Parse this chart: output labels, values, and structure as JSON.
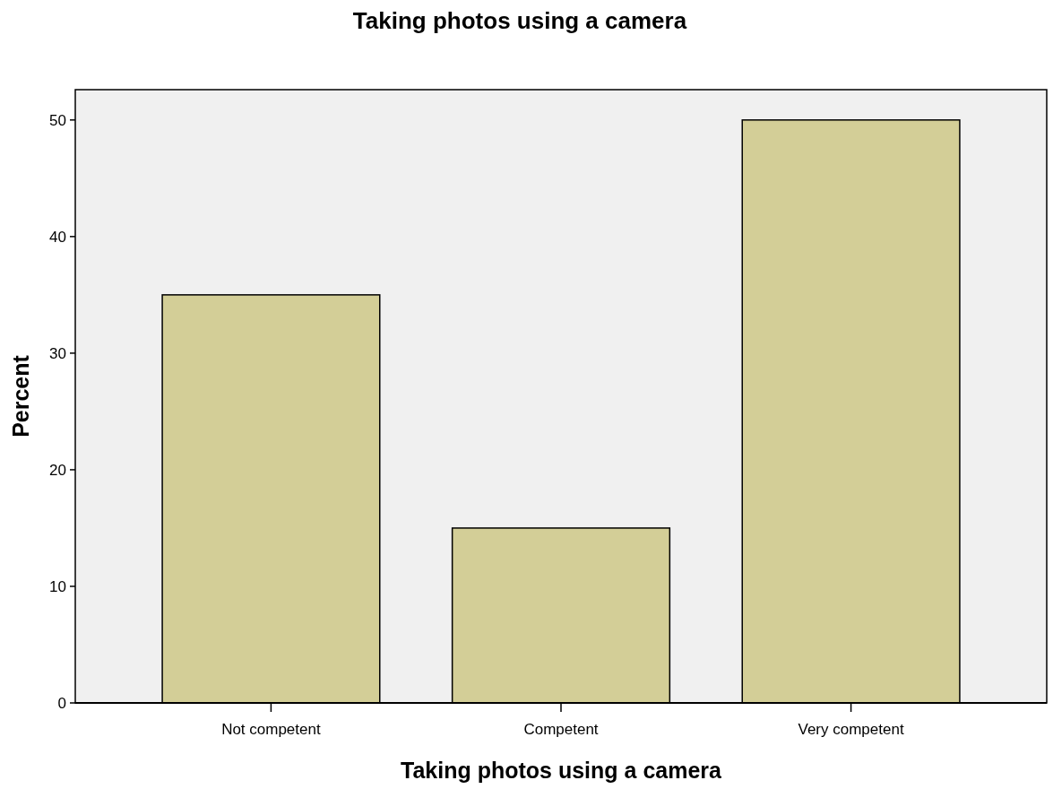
{
  "chart_data": {
    "type": "bar",
    "title": "Taking photos using a camera",
    "xlabel": "Taking photos using a camera",
    "ylabel": "Percent",
    "categories": [
      "Not competent",
      "Competent",
      "Very competent"
    ],
    "values": [
      35,
      15,
      50
    ],
    "color": "#d3ce97",
    "ylim": [
      0,
      52.6
    ],
    "yticks": [
      0,
      10,
      20,
      30,
      40,
      50
    ],
    "grid": false
  }
}
